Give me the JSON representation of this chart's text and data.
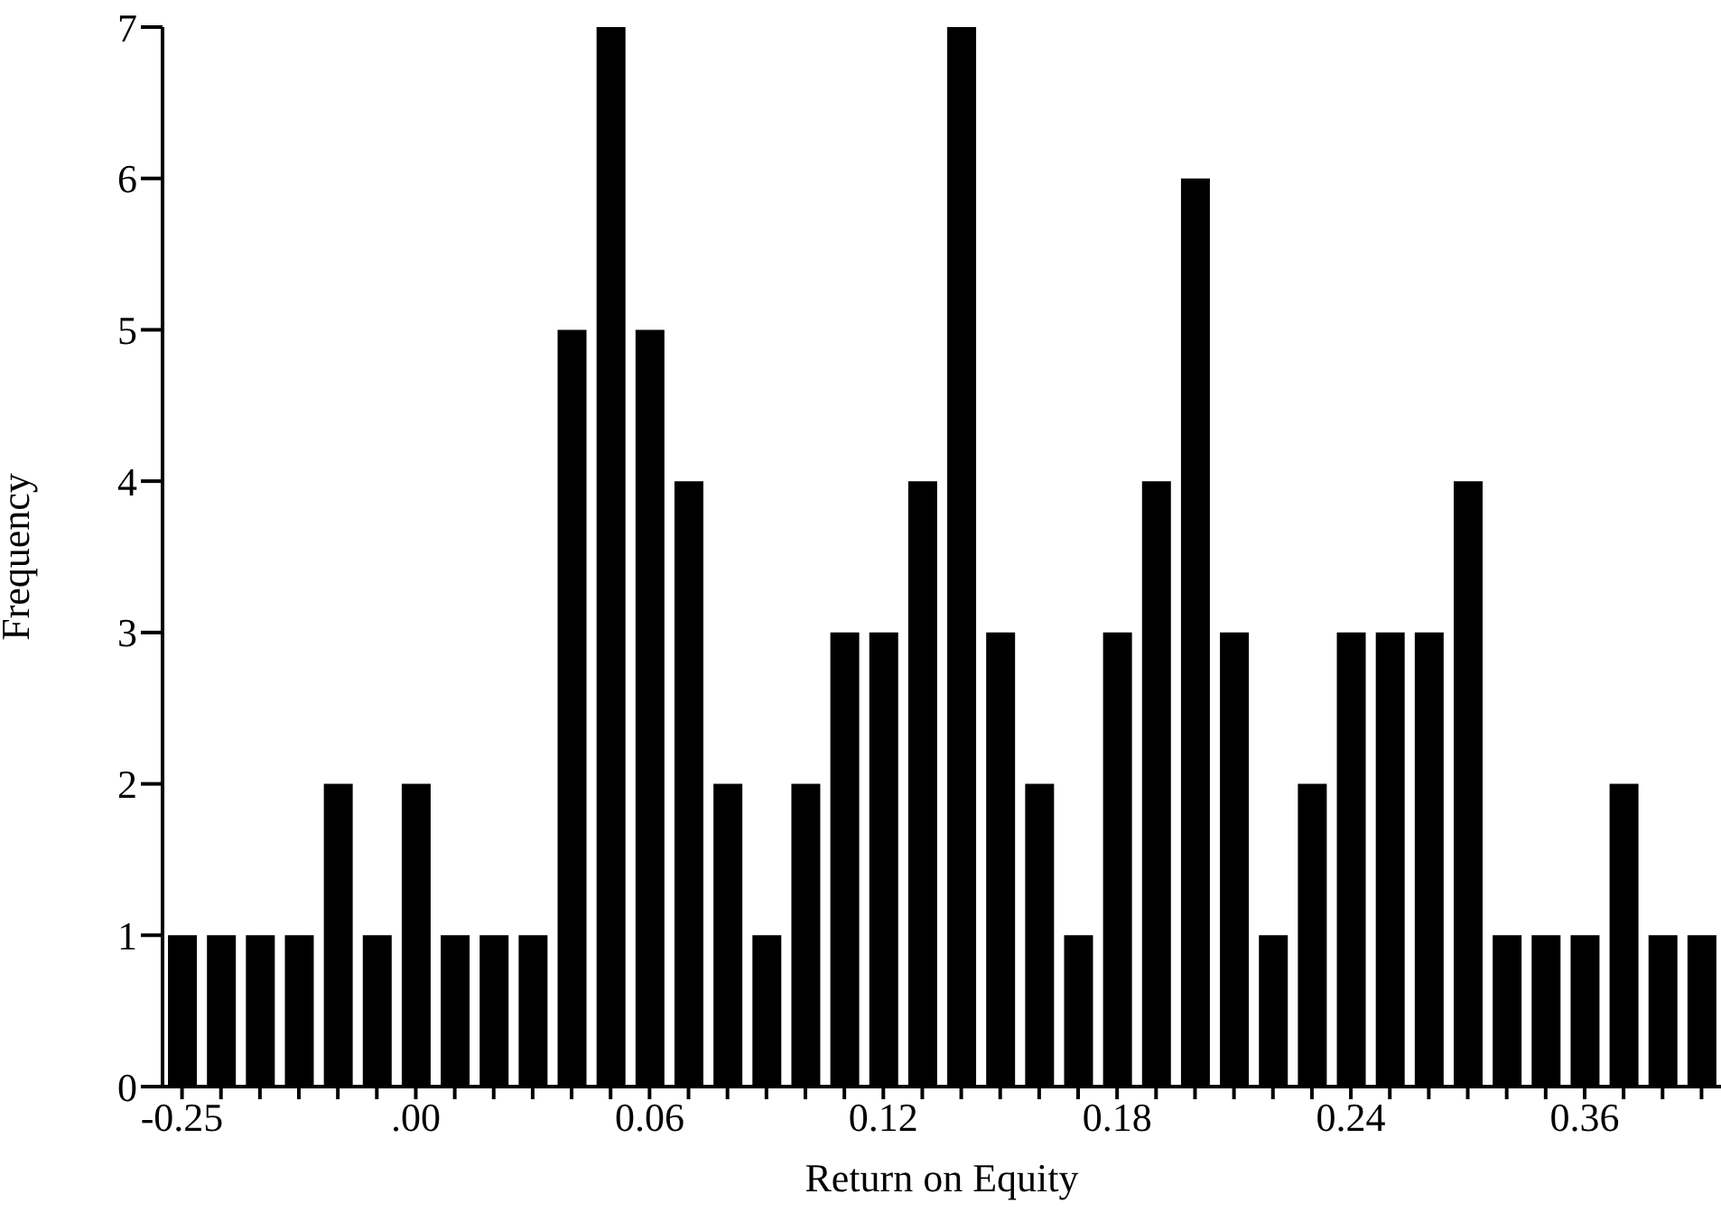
{
  "chart_data": {
    "type": "bar",
    "xlabel": "Return on Equity",
    "ylabel": "Frequency",
    "categories": [
      "-0.25",
      null,
      null,
      null,
      null,
      null,
      ".00",
      null,
      null,
      null,
      null,
      null,
      "0.06",
      null,
      null,
      null,
      null,
      null,
      "0.12",
      null,
      null,
      null,
      null,
      null,
      "0.18",
      null,
      null,
      null,
      null,
      null,
      "0.24",
      null,
      null,
      null,
      null,
      null,
      "0.36",
      null,
      null,
      null
    ],
    "values": [
      1,
      1,
      1,
      1,
      2,
      1,
      2,
      1,
      1,
      1,
      5,
      7,
      5,
      4,
      2,
      1,
      2,
      3,
      3,
      4,
      7,
      3,
      2,
      1,
      3,
      4,
      6,
      3,
      1,
      2,
      3,
      3,
      3,
      4,
      1,
      1,
      1,
      2,
      1,
      1
    ],
    "color": "#000000",
    "ylim": [
      0,
      7
    ],
    "yticks": [
      0,
      1,
      2,
      3,
      4,
      5,
      6,
      7
    ],
    "grid": false,
    "legend": false
  }
}
